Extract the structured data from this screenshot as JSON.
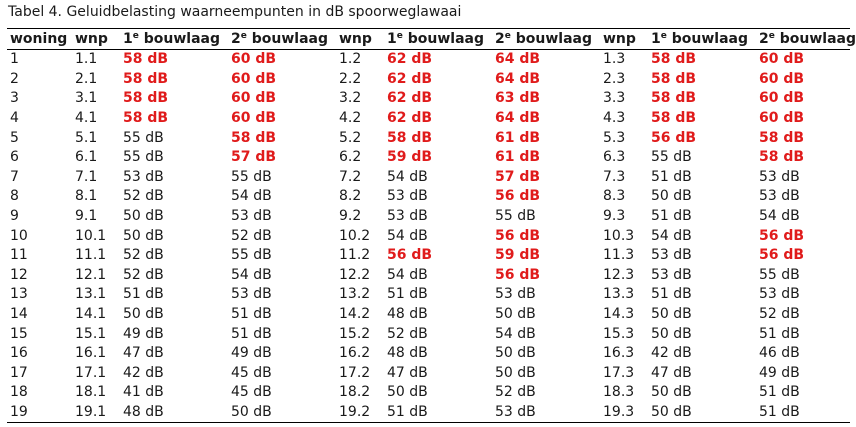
{
  "caption": "Tabel 4. Geluidbelasting waarneempunten in dB spoorweglawaai",
  "headers": [
    {
      "main": "woning",
      "sup": ""
    },
    {
      "main": "wnp",
      "sup": ""
    },
    {
      "main": "1",
      "sup": "e",
      "rest": " bouwlaag"
    },
    {
      "main": "2",
      "sup": "e",
      "rest": " bouwlaag"
    },
    {
      "main": "wnp",
      "sup": ""
    },
    {
      "main": "1",
      "sup": "e",
      "rest": " bouwlaag"
    },
    {
      "main": "2",
      "sup": "e",
      "rest": " bouwlaag"
    },
    {
      "main": "wnp",
      "sup": ""
    },
    {
      "main": "1",
      "sup": "e",
      "rest": " bouwlaag"
    },
    {
      "main": "2",
      "sup": "e",
      "rest": " bouwlaag"
    }
  ],
  "highlight_color": "#e01b1b",
  "rows": [
    {
      "woning": "1",
      "cells": [
        [
          "1.1",
          0
        ],
        [
          "58 dB",
          1
        ],
        [
          "60 dB",
          1
        ],
        [
          "1.2",
          0
        ],
        [
          "62 dB",
          1
        ],
        [
          "64 dB",
          1
        ],
        [
          "1.3",
          0
        ],
        [
          "58 dB",
          1
        ],
        [
          "60 dB",
          1
        ]
      ]
    },
    {
      "woning": "2",
      "cells": [
        [
          "2.1",
          0
        ],
        [
          "58 dB",
          1
        ],
        [
          "60 dB",
          1
        ],
        [
          "2.2",
          0
        ],
        [
          "62 dB",
          1
        ],
        [
          "64 dB",
          1
        ],
        [
          "2.3",
          0
        ],
        [
          "58 dB",
          1
        ],
        [
          "60 dB",
          1
        ]
      ]
    },
    {
      "woning": "3",
      "cells": [
        [
          "3.1",
          0
        ],
        [
          "58 dB",
          1
        ],
        [
          "60 dB",
          1
        ],
        [
          "3.2",
          0
        ],
        [
          "62 dB",
          1
        ],
        [
          "63 dB",
          1
        ],
        [
          "3.3",
          0
        ],
        [
          "58 dB",
          1
        ],
        [
          "60 dB",
          1
        ]
      ]
    },
    {
      "woning": "4",
      "cells": [
        [
          "4.1",
          0
        ],
        [
          "58 dB",
          1
        ],
        [
          "60 dB",
          1
        ],
        [
          "4.2",
          0
        ],
        [
          "62 dB",
          1
        ],
        [
          "64 dB",
          1
        ],
        [
          "4.3",
          0
        ],
        [
          "58 dB",
          1
        ],
        [
          "60 dB",
          1
        ]
      ]
    },
    {
      "woning": "5",
      "cells": [
        [
          "5.1",
          0
        ],
        [
          "55 dB",
          0
        ],
        [
          "58 dB",
          1
        ],
        [
          "5.2",
          0
        ],
        [
          "58 dB",
          1
        ],
        [
          "61 dB",
          1
        ],
        [
          "5.3",
          0
        ],
        [
          "56 dB",
          1
        ],
        [
          "58 dB",
          1
        ]
      ]
    },
    {
      "woning": "6",
      "cells": [
        [
          "6.1",
          0
        ],
        [
          "55 dB",
          0
        ],
        [
          "57 dB",
          1
        ],
        [
          "6.2",
          0
        ],
        [
          "59 dB",
          1
        ],
        [
          "61 dB",
          1
        ],
        [
          "6.3",
          0
        ],
        [
          "55 dB",
          0
        ],
        [
          "58 dB",
          1
        ]
      ]
    },
    {
      "woning": "7",
      "cells": [
        [
          "7.1",
          0
        ],
        [
          "53 dB",
          0
        ],
        [
          "55 dB",
          0
        ],
        [
          "7.2",
          0
        ],
        [
          "54 dB",
          0
        ],
        [
          "57 dB",
          1
        ],
        [
          "7.3",
          0
        ],
        [
          "51 dB",
          0
        ],
        [
          "53 dB",
          0
        ]
      ]
    },
    {
      "woning": "8",
      "cells": [
        [
          "8.1",
          0
        ],
        [
          "52 dB",
          0
        ],
        [
          "54 dB",
          0
        ],
        [
          "8.2",
          0
        ],
        [
          "53 dB",
          0
        ],
        [
          "56 dB",
          1
        ],
        [
          "8.3",
          0
        ],
        [
          "50 dB",
          0
        ],
        [
          "53 dB",
          0
        ]
      ]
    },
    {
      "woning": "9",
      "cells": [
        [
          "9.1",
          0
        ],
        [
          "50 dB",
          0
        ],
        [
          "53 dB",
          0
        ],
        [
          "9.2",
          0
        ],
        [
          "53 dB",
          0
        ],
        [
          "55 dB",
          0
        ],
        [
          "9.3",
          0
        ],
        [
          "51 dB",
          0
        ],
        [
          "54 dB",
          0
        ]
      ]
    },
    {
      "woning": "10",
      "cells": [
        [
          "10.1",
          0
        ],
        [
          "50 dB",
          0
        ],
        [
          "52 dB",
          0
        ],
        [
          "10.2",
          0
        ],
        [
          "54 dB",
          0
        ],
        [
          "56 dB",
          1
        ],
        [
          "10.3",
          0
        ],
        [
          "54 dB",
          0
        ],
        [
          "56 dB",
          1
        ]
      ]
    },
    {
      "woning": "11",
      "cells": [
        [
          "11.1",
          0
        ],
        [
          "52 dB",
          0
        ],
        [
          "55 dB",
          0
        ],
        [
          "11.2",
          0
        ],
        [
          "56 dB",
          1
        ],
        [
          "59 dB",
          1
        ],
        [
          "11.3",
          0
        ],
        [
          "53 dB",
          0
        ],
        [
          "56 dB",
          1
        ]
      ]
    },
    {
      "woning": "12",
      "cells": [
        [
          "12.1",
          0
        ],
        [
          "52 dB",
          0
        ],
        [
          "54 dB",
          0
        ],
        [
          "12.2",
          0
        ],
        [
          "54 dB",
          0
        ],
        [
          "56 dB",
          1
        ],
        [
          "12.3",
          0
        ],
        [
          "53 dB",
          0
        ],
        [
          "55 dB",
          0
        ]
      ]
    },
    {
      "woning": "13",
      "cells": [
        [
          "13.1",
          0
        ],
        [
          "51 dB",
          0
        ],
        [
          "53 dB",
          0
        ],
        [
          "13.2",
          0
        ],
        [
          "51 dB",
          0
        ],
        [
          "53 dB",
          0
        ],
        [
          "13.3",
          0
        ],
        [
          "51 dB",
          0
        ],
        [
          "53 dB",
          0
        ]
      ]
    },
    {
      "woning": "14",
      "cells": [
        [
          "14.1",
          0
        ],
        [
          "50 dB",
          0
        ],
        [
          "51 dB",
          0
        ],
        [
          "14.2",
          0
        ],
        [
          "48 dB",
          0
        ],
        [
          "50 dB",
          0
        ],
        [
          "14.3",
          0
        ],
        [
          "50 dB",
          0
        ],
        [
          "52 dB",
          0
        ]
      ]
    },
    {
      "woning": "15",
      "cells": [
        [
          "15.1",
          0
        ],
        [
          "49 dB",
          0
        ],
        [
          "51 dB",
          0
        ],
        [
          "15.2",
          0
        ],
        [
          "52 dB",
          0
        ],
        [
          "54 dB",
          0
        ],
        [
          "15.3",
          0
        ],
        [
          "50 dB",
          0
        ],
        [
          "51 dB",
          0
        ]
      ]
    },
    {
      "woning": "16",
      "cells": [
        [
          "16.1",
          0
        ],
        [
          "47 dB",
          0
        ],
        [
          "49 dB",
          0
        ],
        [
          "16.2",
          0
        ],
        [
          "48 dB",
          0
        ],
        [
          "50 dB",
          0
        ],
        [
          "16.3",
          0
        ],
        [
          "42 dB",
          0
        ],
        [
          "46 dB",
          0
        ]
      ]
    },
    {
      "woning": "17",
      "cells": [
        [
          "17.1",
          0
        ],
        [
          "42 dB",
          0
        ],
        [
          "45 dB",
          0
        ],
        [
          "17.2",
          0
        ],
        [
          "47 dB",
          0
        ],
        [
          "50 dB",
          0
        ],
        [
          "17.3",
          0
        ],
        [
          "47 dB",
          0
        ],
        [
          "49 dB",
          0
        ]
      ]
    },
    {
      "woning": "18",
      "cells": [
        [
          "18.1",
          0
        ],
        [
          "41 dB",
          0
        ],
        [
          "45 dB",
          0
        ],
        [
          "18.2",
          0
        ],
        [
          "50 dB",
          0
        ],
        [
          "52 dB",
          0
        ],
        [
          "18.3",
          0
        ],
        [
          "50 dB",
          0
        ],
        [
          "51 dB",
          0
        ]
      ]
    },
    {
      "woning": "19",
      "cells": [
        [
          "19.1",
          0
        ],
        [
          "48 dB",
          0
        ],
        [
          "50 dB",
          0
        ],
        [
          "19.2",
          0
        ],
        [
          "51 dB",
          0
        ],
        [
          "53 dB",
          0
        ],
        [
          "19.3",
          0
        ],
        [
          "50 dB",
          0
        ],
        [
          "51 dB",
          0
        ]
      ]
    }
  ]
}
